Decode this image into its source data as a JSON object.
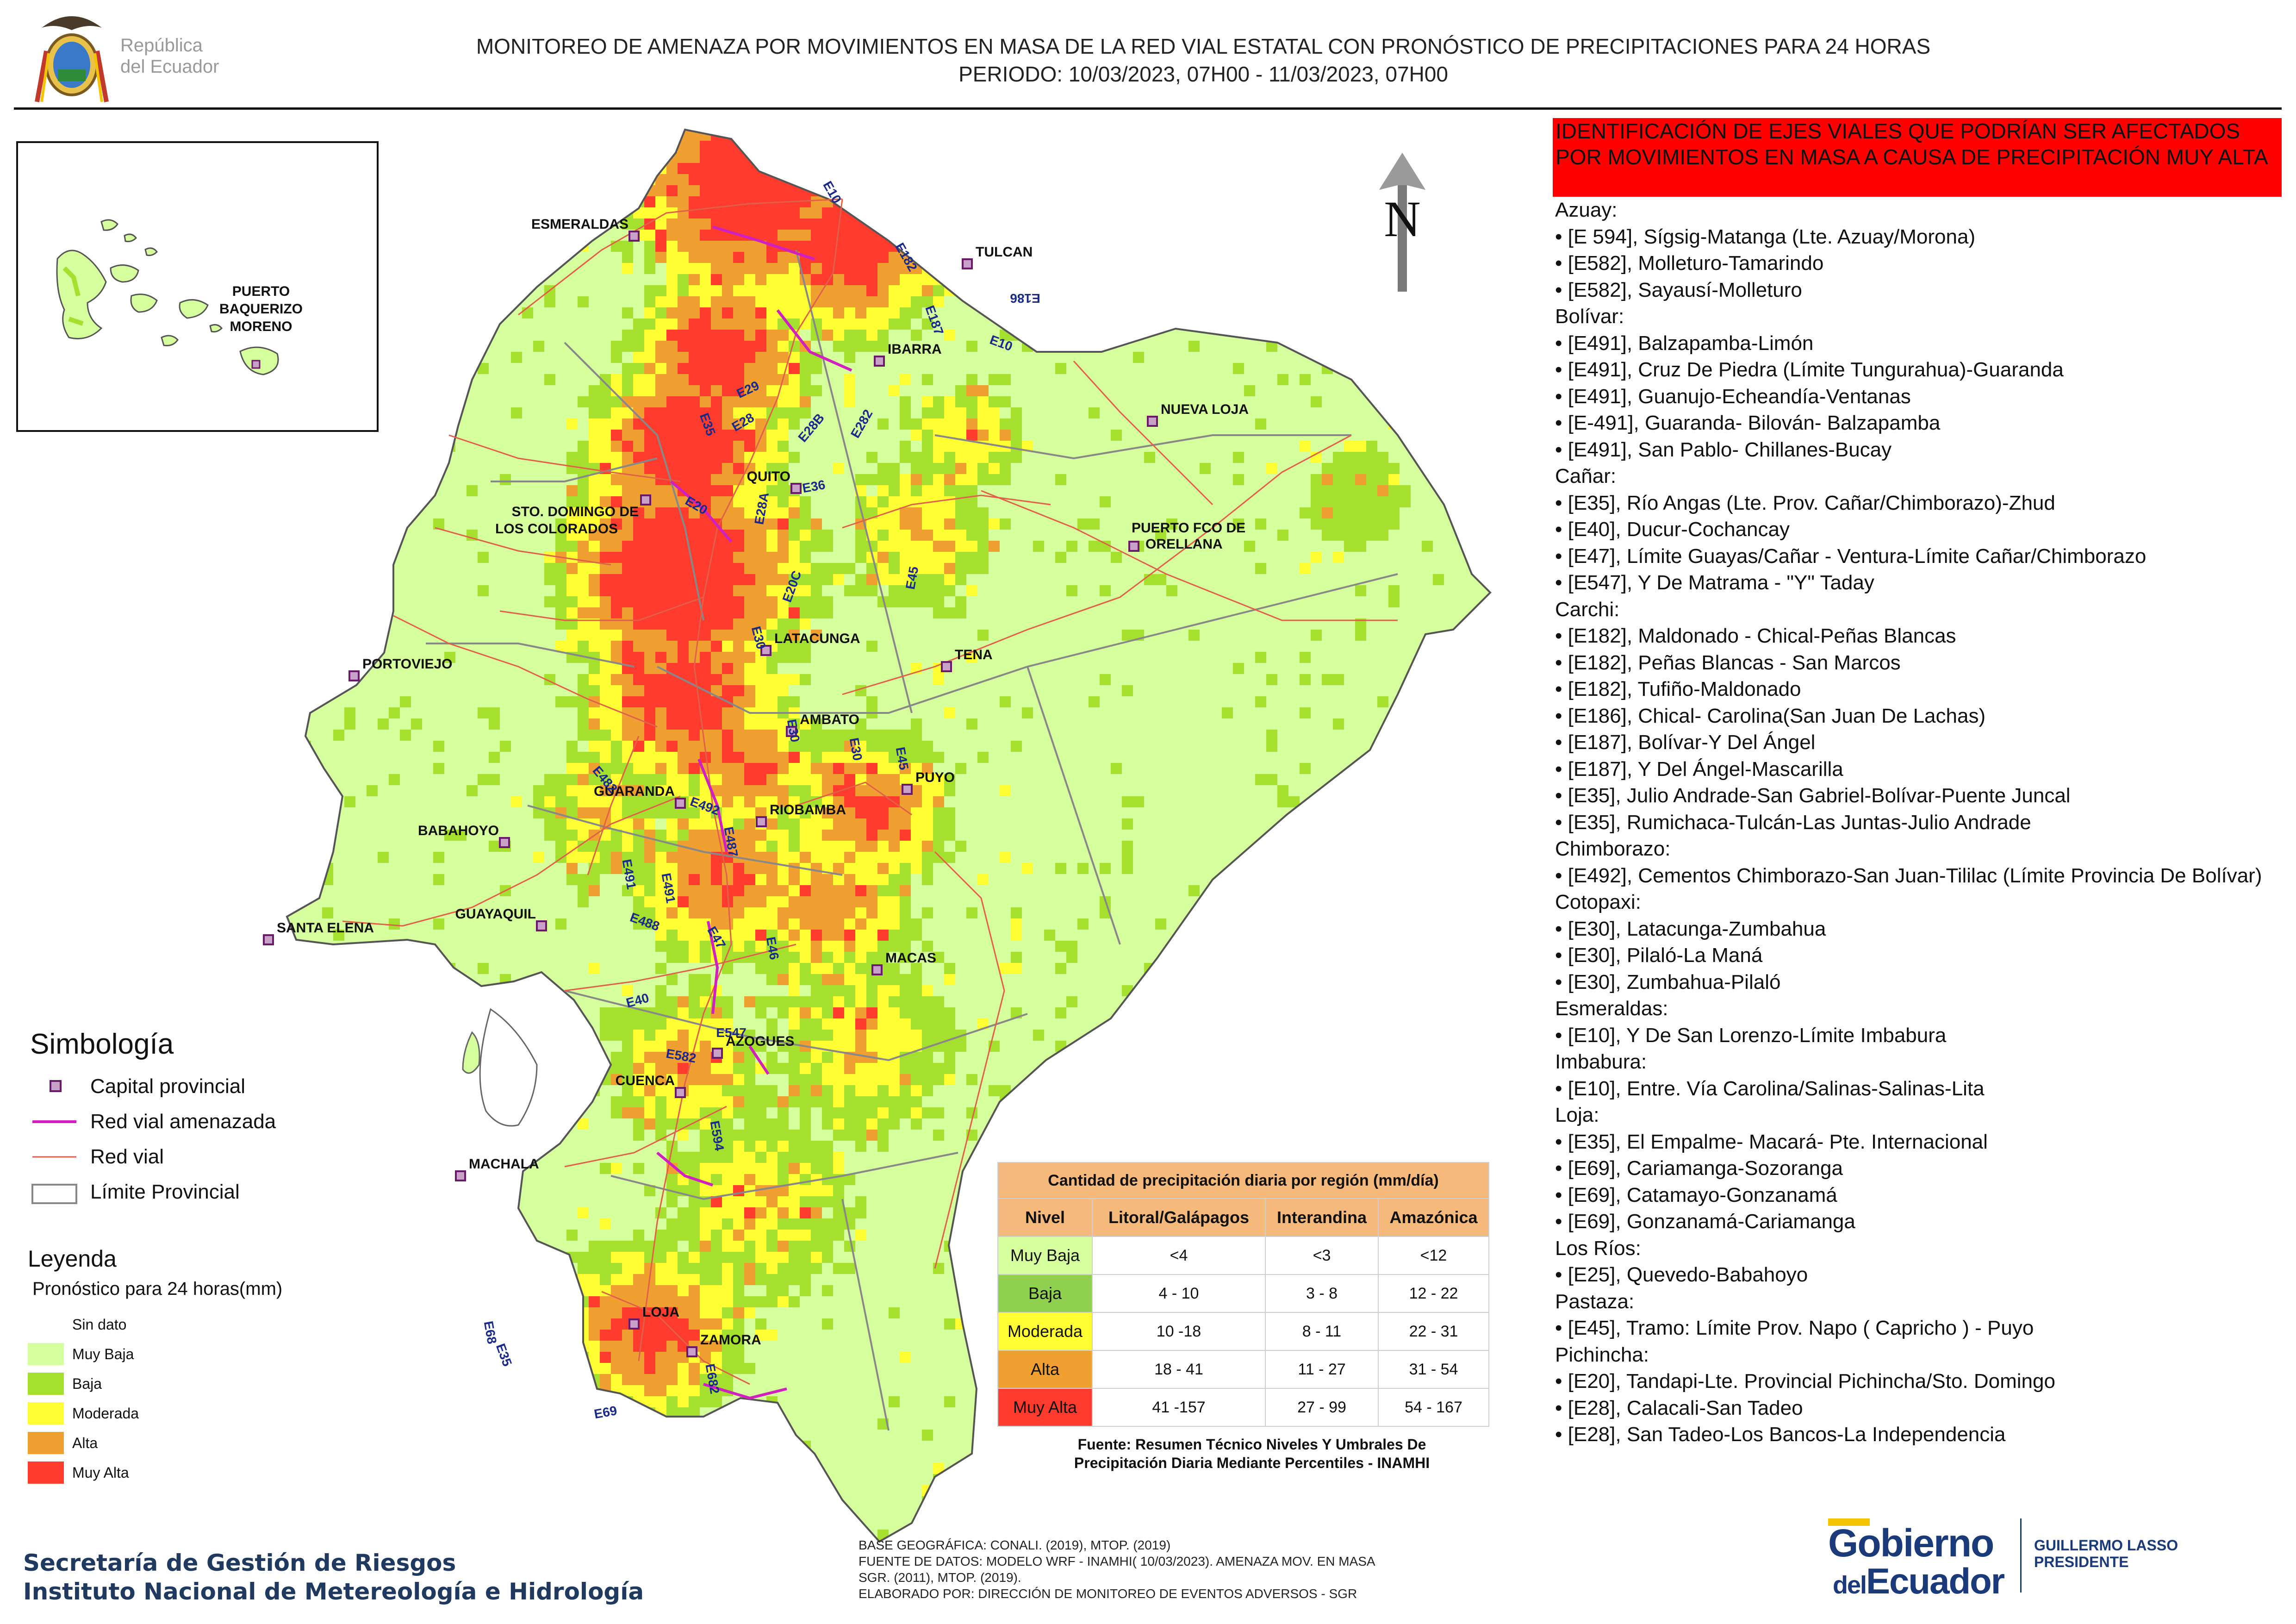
{
  "title": {
    "line1": "MONITOREO DE AMENAZA POR MOVIMIENTOS EN MASA DE LA RED VIAL  ESTATAL  CON PRONÓSTICO  DE  PRECIPITACIONES PARA 24 HORAS",
    "line2": "PERIODO: 10/03/2023, 07H00 - 11/03/2023, 07H00"
  },
  "header_logo": {
    "line1": "República",
    "line2": "del Ecuador",
    "icon": "coat-of-arms"
  },
  "colors": {
    "sin_dato": "#ffffff",
    "muy_baja": "#d6ff9e",
    "baja": "#a6e02e",
    "moderada": "#ffff33",
    "alta": "#f0a030",
    "muy_alta": "#ff3b2e",
    "red_vial_amenazada": "#d020c0",
    "red_vial": "#e0604a",
    "limite_provincial": "#888888",
    "id_header_bg": "#ff0000",
    "table_header_bg": "#f5b97c"
  },
  "inset": {
    "city": "PUERTO BAQUERIZO MORENO"
  },
  "cities": [
    "ESMERALDAS",
    "TULCAN",
    "IBARRA",
    "NUEVA LOJA",
    "QUITO",
    "STO. DOMINGO DE LOS COLORADOS",
    "PUERTO FCO DE ORELLANA",
    "PORTOVIEJO",
    "LATACUNGA",
    "TENA",
    "AMBATO",
    "PUYO",
    "GUARANDA",
    "RIOBAMBA",
    "BABAHOYO",
    "SANTA ELENA",
    "GUAYAQUIL",
    "MACAS",
    "AZOGUES",
    "CUENCA",
    "MACHALA",
    "LOJA",
    "ZAMORA"
  ],
  "city_line_parts": {
    "sto_domingo": [
      "STO. DOMINGO DE",
      "LOS COLORADOS"
    ],
    "orellana": [
      "PUERTO FCO DE",
      "ORELLANA"
    ],
    "baquerizo": [
      "PUERTO",
      "BAQUERIZO",
      "MORENO"
    ]
  },
  "roads": [
    "E10",
    "E182",
    "E187",
    "E186",
    "E35",
    "E29",
    "E28",
    "E28B",
    "E282",
    "E36",
    "E20",
    "E28A",
    "E20C",
    "E30",
    "E45",
    "E491",
    "E492",
    "E487",
    "E490",
    "E488",
    "E47",
    "E46",
    "E40",
    "E547",
    "E582",
    "E594",
    "E68",
    "E69",
    "E682"
  ],
  "north_label": "N",
  "identificacion": {
    "header": "IDENTIFICACIÓN DE EJES VIALES QUE PODRÍAN SER AFECTADOS POR MOVIMIENTOS EN MASA A CAUSA DE PRECIPITACIÓN MUY ALTA",
    "groups": [
      {
        "province": "Azuay:",
        "items": [
          "• [E 594], Sígsig-Matanga (Lte. Azuay/Morona)",
          "• [E582], Molleturo-Tamarindo",
          "• [E582], Sayausí-Molleturo"
        ]
      },
      {
        "province": "Bolívar:",
        "items": [
          "• [E491], Balzapamba-Limón",
          "• [E491], Cruz De Piedra (Límite Tungurahua)-Guaranda",
          "• [E491], Guanujo-Echeandía-Ventanas",
          "• [E-491], Guaranda- Bilován- Balzapamba",
          "• [E491], San Pablo- Chillanes-Bucay"
        ]
      },
      {
        "province": "Cañar:",
        "items": [
          "• [E35], Río Angas (Lte. Prov. Cañar/Chimborazo)-Zhud",
          "• [E40], Ducur-Cochancay",
          "• [E47], Límite Guayas/Cañar - Ventura-Límite Cañar/Chimborazo",
          "• [E547], Y De Matrama - \"Y\" Taday"
        ]
      },
      {
        "province": "Carchi:",
        "items": [
          "• [E182], Maldonado - Chical-Peñas Blancas",
          "• [E182], Peñas Blancas - San Marcos",
          "• [E182], Tufiño-Maldonado",
          "• [E186], Chical- Carolina(San Juan De Lachas)",
          "• [E187], Bolívar-Y Del Ángel",
          "• [E187], Y Del Ángel-Mascarilla",
          "• [E35], Julio Andrade-San Gabriel-Bolívar-Puente Juncal",
          "• [E35], Rumichaca-Tulcán-Las Juntas-Julio Andrade"
        ]
      },
      {
        "province": "Chimborazo:",
        "items": [
          "• [E492], Cementos Chimborazo-San Juan-Tililac (Límite Provincia De Bolívar)"
        ]
      },
      {
        "province": "Cotopaxi:",
        "items": [
          "• [E30], Latacunga-Zumbahua",
          "• [E30], Pilaló-La Maná",
          "• [E30], Zumbahua-Pilaló"
        ]
      },
      {
        "province": "Esmeraldas:",
        "items": [
          "• [E10], Y De San Lorenzo-Límite Imbabura"
        ]
      },
      {
        "province": "Imbabura:",
        "items": [
          "• [E10], Entre. Vía Carolina/Salinas-Salinas-Lita"
        ]
      },
      {
        "province": "Loja:",
        "items": [
          "• [E35], El Empalme- Macará- Pte. Internacional",
          "• [E69], Cariamanga-Sozoranga",
          "• [E69], Catamayo-Gonzanamá",
          "• [E69], Gonzanamá-Cariamanga"
        ]
      },
      {
        "province": "Los Ríos:",
        "items": [
          "• [E25], Quevedo-Babahoyo"
        ]
      },
      {
        "province": "Pastaza:",
        "items": [
          "• [E45], Tramo: Límite Prov. Napo ( Capricho ) - Puyo"
        ]
      },
      {
        "province": "Pichincha:",
        "items": [
          "• [E20], Tandapi-Lte. Provincial Pichincha/Sto. Domingo",
          "• [E28], Calacali-San Tadeo",
          "• [E28], San Tadeo-Los Bancos-La Independencia"
        ]
      }
    ]
  },
  "simbologia": {
    "title": "Simbología",
    "items": [
      {
        "label": "Capital provincial",
        "icon": "capital-square"
      },
      {
        "label": "Red vial amenazada",
        "icon": "magenta-line"
      },
      {
        "label": "Red vial",
        "icon": "red-line"
      },
      {
        "label": "Límite Provincial",
        "icon": "gray-box"
      }
    ]
  },
  "leyenda": {
    "title": "Leyenda",
    "subtitle": "Pronóstico para 24 horas(mm)",
    "items": [
      {
        "label": "Sin dato",
        "color": "#ffffff"
      },
      {
        "label": "Muy Baja",
        "color": "#d6ff9e"
      },
      {
        "label": "Baja",
        "color": "#a6e02e"
      },
      {
        "label": "Moderada",
        "color": "#ffff33"
      },
      {
        "label": "Alta",
        "color": "#f0a030"
      },
      {
        "label": "Muy Alta",
        "color": "#ff3b2e"
      }
    ]
  },
  "precip_table": {
    "caption": "Cantidad de precipitación diaria por región (mm/día)",
    "headers": [
      "Nivel",
      "Litoral/Galápagos",
      "Interandina",
      "Amazónica"
    ],
    "rows": [
      {
        "nivel": "Muy Baja",
        "color": "#d6ff9e",
        "litoral": "<4",
        "interandina": "<3",
        "amazonica": "<12"
      },
      {
        "nivel": "Baja",
        "color": "#8fd14f",
        "litoral": "4 - 10",
        "interandina": "3 - 8",
        "amazonica": "12 - 22"
      },
      {
        "nivel": "Moderada",
        "color": "#ffff33",
        "litoral": "10 -18",
        "interandina": "8 - 11",
        "amazonica": "22 - 31"
      },
      {
        "nivel": "Alta",
        "color": "#f0a030",
        "litoral": "18 - 41",
        "interandina": "11 - 27",
        "amazonica": "31 - 54"
      },
      {
        "nivel": "Muy Alta",
        "color": "#ff3b2e",
        "litoral": "41 -157",
        "interandina": "27 - 99",
        "amazonica": "54 - 167"
      }
    ],
    "fuente_line1": "Fuente: Resumen Técnico Niveles Y Umbrales De",
    "fuente_line2": "Precipitación Diaria Mediante Percentiles - INAMHI"
  },
  "base_info": {
    "line1": "BASE GEOGRÁFICA: CONALI. (2019), MTOP. (2019)",
    "line2": "FUENTE DE DATOS: MODELO WRF - INAMHI( 10/03/2023).  AMENAZA MOV. EN MASA",
    "line3": "SGR. (2011), MTOP. (2019).",
    "line4": "ELABORADO POR: DIRECCIÓN DE MONITOREO DE EVENTOS ADVERSOS - SGR"
  },
  "footer_left": {
    "line1": "Secretaría de Gestión de Riesgos",
    "line2": "Instituto Nacional de Metereología e Hidrología"
  },
  "footer_right": {
    "gob1": "Gobierno",
    "gob2_small": "del",
    "gob2": "Ecuador",
    "name": "GUILLERMO LASSO",
    "role": "PRESIDENTE"
  }
}
